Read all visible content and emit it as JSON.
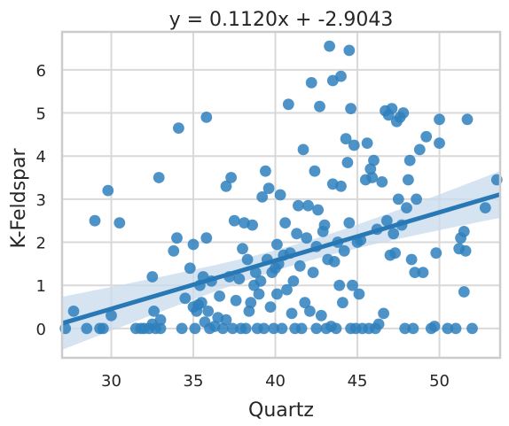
{
  "chart_data": {
    "type": "scatter",
    "title": "y = 0.1120x + -2.9043",
    "xlabel": "Quartz",
    "ylabel": "K-Feldspar",
    "xlim": [
      27.0,
      53.7
    ],
    "ylim": [
      -0.68,
      6.88
    ],
    "xticks": [
      30,
      35,
      40,
      45,
      50
    ],
    "yticks": [
      0,
      1,
      2,
      3,
      4,
      5,
      6
    ],
    "grid": true,
    "colors": {
      "points": "#2f80bd",
      "line": "#2878b5",
      "band": "#c8dbee",
      "grid": "#d9d9d9",
      "frame": "#cccccc",
      "text": "#262626"
    },
    "regression": {
      "slope": 0.112,
      "intercept": -2.9043
    },
    "points": [
      [
        27.2,
        0.0
      ],
      [
        27.7,
        0.4
      ],
      [
        28.5,
        0.0
      ],
      [
        29.0,
        2.5
      ],
      [
        29.3,
        0.0
      ],
      [
        29.5,
        0.0
      ],
      [
        29.8,
        3.2
      ],
      [
        30.0,
        0.3
      ],
      [
        30.5,
        2.45
      ],
      [
        31.5,
        0.0
      ],
      [
        31.8,
        0.0
      ],
      [
        32.0,
        0.0
      ],
      [
        32.3,
        0.0
      ],
      [
        32.5,
        0.1
      ],
      [
        32.5,
        1.2
      ],
      [
        32.6,
        0.4
      ],
      [
        32.7,
        0.0
      ],
      [
        32.9,
        3.5
      ],
      [
        33.0,
        0.0
      ],
      [
        33.0,
        0.2
      ],
      [
        33.8,
        1.8
      ],
      [
        34.0,
        2.1
      ],
      [
        34.1,
        4.65
      ],
      [
        34.3,
        0.0
      ],
      [
        34.5,
        0.7
      ],
      [
        34.8,
        1.4
      ],
      [
        35.0,
        0.5
      ],
      [
        35.0,
        1.95
      ],
      [
        35.1,
        0.0
      ],
      [
        35.2,
        0.4
      ],
      [
        35.3,
        0.55
      ],
      [
        35.4,
        1.0
      ],
      [
        35.5,
        0.6
      ],
      [
        35.6,
        1.2
      ],
      [
        35.7,
        0.15
      ],
      [
        35.8,
        2.1
      ],
      [
        35.8,
        4.9
      ],
      [
        35.9,
        0.4
      ],
      [
        36.0,
        0.0
      ],
      [
        36.1,
        1.1
      ],
      [
        36.3,
        0.05
      ],
      [
        36.5,
        0.25
      ],
      [
        36.6,
        0.75
      ],
      [
        36.8,
        0.0
      ],
      [
        37.0,
        0.2
      ],
      [
        37.0,
        3.3
      ],
      [
        37.2,
        1.2
      ],
      [
        37.3,
        3.5
      ],
      [
        37.4,
        0.0
      ],
      [
        37.5,
        2.5
      ],
      [
        37.6,
        0.65
      ],
      [
        37.8,
        1.15
      ],
      [
        37.9,
        0.0
      ],
      [
        38.0,
        1.85
      ],
      [
        38.1,
        2.45
      ],
      [
        38.2,
        0.0
      ],
      [
        38.3,
        1.6
      ],
      [
        38.4,
        0.4
      ],
      [
        38.5,
        0.6
      ],
      [
        38.6,
        2.4
      ],
      [
        38.7,
        1.0
      ],
      [
        38.8,
        1.3
      ],
      [
        38.9,
        0.0
      ],
      [
        39.0,
        0.8
      ],
      [
        39.1,
        1.1
      ],
      [
        39.2,
        3.05
      ],
      [
        39.3,
        0.0
      ],
      [
        39.4,
        3.65
      ],
      [
        39.5,
        1.6
      ],
      [
        39.6,
        3.25
      ],
      [
        39.7,
        0.5
      ],
      [
        39.8,
        1.3
      ],
      [
        39.9,
        0.0
      ],
      [
        40.0,
        1.4
      ],
      [
        40.1,
        0.8
      ],
      [
        40.1,
        1.95
      ],
      [
        40.2,
        1.5
      ],
      [
        40.3,
        3.1
      ],
      [
        40.4,
        0.0
      ],
      [
        40.5,
        1.7
      ],
      [
        40.6,
        2.45
      ],
      [
        40.7,
        0.9
      ],
      [
        40.8,
        5.2
      ],
      [
        40.9,
        1.75
      ],
      [
        41.0,
        0.35
      ],
      [
        41.1,
        1.1
      ],
      [
        41.2,
        0.0
      ],
      [
        41.3,
        2.2
      ],
      [
        41.4,
        2.85
      ],
      [
        41.5,
        1.45
      ],
      [
        41.6,
        0.0
      ],
      [
        41.7,
        4.15
      ],
      [
        41.8,
        0.6
      ],
      [
        41.9,
        2.1
      ],
      [
        42.0,
        2.85
      ],
      [
        42.1,
        0.4
      ],
      [
        42.2,
        5.7
      ],
      [
        42.3,
        1.3
      ],
      [
        42.4,
        3.65
      ],
      [
        42.5,
        0.0
      ],
      [
        42.5,
        1.9
      ],
      [
        42.6,
        2.75
      ],
      [
        42.7,
        5.15
      ],
      [
        42.8,
        0.3
      ],
      [
        42.9,
        2.25
      ],
      [
        43.0,
        2.4
      ],
      [
        43.1,
        0.0
      ],
      [
        43.2,
        1.6
      ],
      [
        43.3,
        6.55
      ],
      [
        43.4,
        0.05
      ],
      [
        43.5,
        3.35
      ],
      [
        43.5,
        5.75
      ],
      [
        43.6,
        1.55
      ],
      [
        43.7,
        0.0
      ],
      [
        43.8,
        2.0
      ],
      [
        43.9,
        1.0
      ],
      [
        44.0,
        5.85
      ],
      [
        44.0,
        3.3
      ],
      [
        44.1,
        0.6
      ],
      [
        44.2,
        1.8
      ],
      [
        44.3,
        4.4
      ],
      [
        44.4,
        3.85
      ],
      [
        44.5,
        6.45
      ],
      [
        44.5,
        2.45
      ],
      [
        44.6,
        5.1
      ],
      [
        44.6,
        0.0
      ],
      [
        44.7,
        1.0
      ],
      [
        44.8,
        4.25
      ],
      [
        44.9,
        0.0
      ],
      [
        45.0,
        2.0
      ],
      [
        45.1,
        0.8
      ],
      [
        45.2,
        2.05
      ],
      [
        45.3,
        0.0
      ],
      [
        45.5,
        3.45
      ],
      [
        45.6,
        4.3
      ],
      [
        45.7,
        0.0
      ],
      [
        45.8,
        3.7
      ],
      [
        45.9,
        3.5
      ],
      [
        46.0,
        3.9
      ],
      [
        46.1,
        0.0
      ],
      [
        46.2,
        2.3
      ],
      [
        46.3,
        0.1
      ],
      [
        46.5,
        3.4
      ],
      [
        46.6,
        0.35
      ],
      [
        46.7,
        5.05
      ],
      [
        46.8,
        2.5
      ],
      [
        46.9,
        4.95
      ],
      [
        47.0,
        1.7
      ],
      [
        47.1,
        5.1
      ],
      [
        47.2,
        2.2
      ],
      [
        47.3,
        1.75
      ],
      [
        47.4,
        4.8
      ],
      [
        47.5,
        3.0
      ],
      [
        47.6,
        4.9
      ],
      [
        47.7,
        2.4
      ],
      [
        47.8,
        5.0
      ],
      [
        47.9,
        0.0
      ],
      [
        48.0,
        2.8
      ],
      [
        48.1,
        3.45
      ],
      [
        48.2,
        3.9
      ],
      [
        48.3,
        1.6
      ],
      [
        48.4,
        0.0
      ],
      [
        48.5,
        1.3
      ],
      [
        48.6,
        3.0
      ],
      [
        48.8,
        4.15
      ],
      [
        49.0,
        1.3
      ],
      [
        49.2,
        4.45
      ],
      [
        49.5,
        0.0
      ],
      [
        49.7,
        0.05
      ],
      [
        49.8,
        1.75
      ],
      [
        50.0,
        4.85
      ],
      [
        50.0,
        4.3
      ],
      [
        50.5,
        0.0
      ],
      [
        51.0,
        0.0
      ],
      [
        51.2,
        1.85
      ],
      [
        51.3,
        2.1
      ],
      [
        51.5,
        0.85
      ],
      [
        51.5,
        2.25
      ],
      [
        51.7,
        4.85
      ],
      [
        51.6,
        1.8
      ],
      [
        52.0,
        0.0
      ],
      [
        52.8,
        2.8
      ],
      [
        53.5,
        3.45
      ]
    ]
  }
}
